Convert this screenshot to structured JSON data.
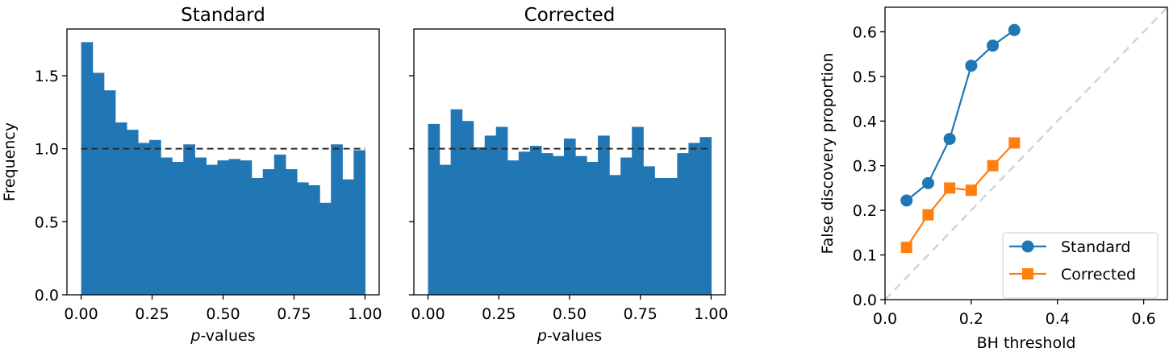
{
  "colors": {
    "bar": "#2077b4",
    "standard": "#1f77b4",
    "corrected": "#ff7f0e",
    "reference_line": "#2b2b2b",
    "diagonal": "#d3d3d3",
    "axis": "#000000"
  },
  "chart_data": [
    {
      "type": "bar",
      "subtype": "histogram",
      "title": "Standard",
      "xlabel": "p-values",
      "xlabel_italic_part": "p",
      "xlabel_rest": "-values",
      "ylabel": "Frequency",
      "xlim": [
        -0.05,
        1.05
      ],
      "ylim": [
        0.0,
        1.82
      ],
      "xticks": [
        0.0,
        0.25,
        0.5,
        0.75,
        1.0
      ],
      "xtick_labels": [
        "0.00",
        "0.25",
        "0.50",
        "0.75",
        "1.00"
      ],
      "yticks": [
        0.0,
        0.5,
        1.0,
        1.5
      ],
      "ytick_labels": [
        "0.0",
        "0.5",
        "1.0",
        "1.5"
      ],
      "bin_edges_start": 0.0,
      "bin_width": 0.04,
      "values": [
        1.73,
        1.52,
        1.4,
        1.18,
        1.13,
        1.04,
        1.06,
        0.94,
        0.91,
        1.03,
        0.94,
        0.89,
        0.92,
        0.93,
        0.92,
        0.8,
        0.86,
        0.96,
        0.86,
        0.77,
        0.75,
        0.63,
        1.03,
        0.79,
        0.99
      ],
      "reference_line": {
        "y": 1.0,
        "style": "dashed",
        "x_range": [
          0.0,
          1.0
        ]
      },
      "grid": false
    },
    {
      "type": "bar",
      "subtype": "histogram",
      "title": "Corrected",
      "xlabel": "p-values",
      "xlabel_italic_part": "p",
      "xlabel_rest": "-values",
      "ylabel": "",
      "xlim": [
        -0.05,
        1.05
      ],
      "ylim": [
        0.0,
        1.82
      ],
      "xticks": [
        0.0,
        0.25,
        0.5,
        0.75,
        1.0
      ],
      "xtick_labels": [
        "0.00",
        "0.25",
        "0.50",
        "0.75",
        "1.00"
      ],
      "yticks": [
        0.0,
        0.5,
        1.0,
        1.5
      ],
      "ytick_labels": [],
      "bin_edges_start": 0.0,
      "bin_width": 0.04,
      "values": [
        1.17,
        0.89,
        1.27,
        1.19,
        1.01,
        1.09,
        1.15,
        0.92,
        0.98,
        1.02,
        0.97,
        0.95,
        1.07,
        0.95,
        0.91,
        1.09,
        0.82,
        0.94,
        1.15,
        0.88,
        0.8,
        0.8,
        0.97,
        1.04,
        1.08
      ],
      "reference_line": {
        "y": 1.0,
        "style": "dashed",
        "x_range": [
          0.0,
          1.0
        ]
      },
      "grid": false
    },
    {
      "type": "line",
      "title": "",
      "xlabel": "BH threshold",
      "ylabel": "False discovery proportion",
      "xlim": [
        0.0,
        0.655
      ],
      "ylim": [
        0.0,
        0.655
      ],
      "xticks": [
        0.0,
        0.2,
        0.4,
        0.6
      ],
      "xtick_labels": [
        "0.0",
        "0.2",
        "0.4",
        "0.6"
      ],
      "yticks": [
        0.0,
        0.1,
        0.2,
        0.3,
        0.4,
        0.5,
        0.6
      ],
      "ytick_labels": [
        "0.0",
        "0.1",
        "0.2",
        "0.3",
        "0.4",
        "0.5",
        "0.6"
      ],
      "x": [
        0.05,
        0.1,
        0.15,
        0.2,
        0.25,
        0.3
      ],
      "series": [
        {
          "name": "Standard",
          "marker": "circle",
          "values": [
            0.222,
            0.261,
            0.36,
            0.524,
            0.569,
            0.604
          ]
        },
        {
          "name": "Corrected",
          "marker": "square",
          "values": [
            0.117,
            0.19,
            0.25,
            0.245,
            0.3,
            0.351
          ]
        }
      ],
      "reference_line": {
        "type": "diagonal",
        "style": "dashed",
        "from": [
          0,
          0
        ],
        "to": [
          0.655,
          0.655
        ]
      },
      "legend": {
        "position": "lower right",
        "entries": [
          "Standard",
          "Corrected"
        ]
      },
      "grid": false
    }
  ]
}
